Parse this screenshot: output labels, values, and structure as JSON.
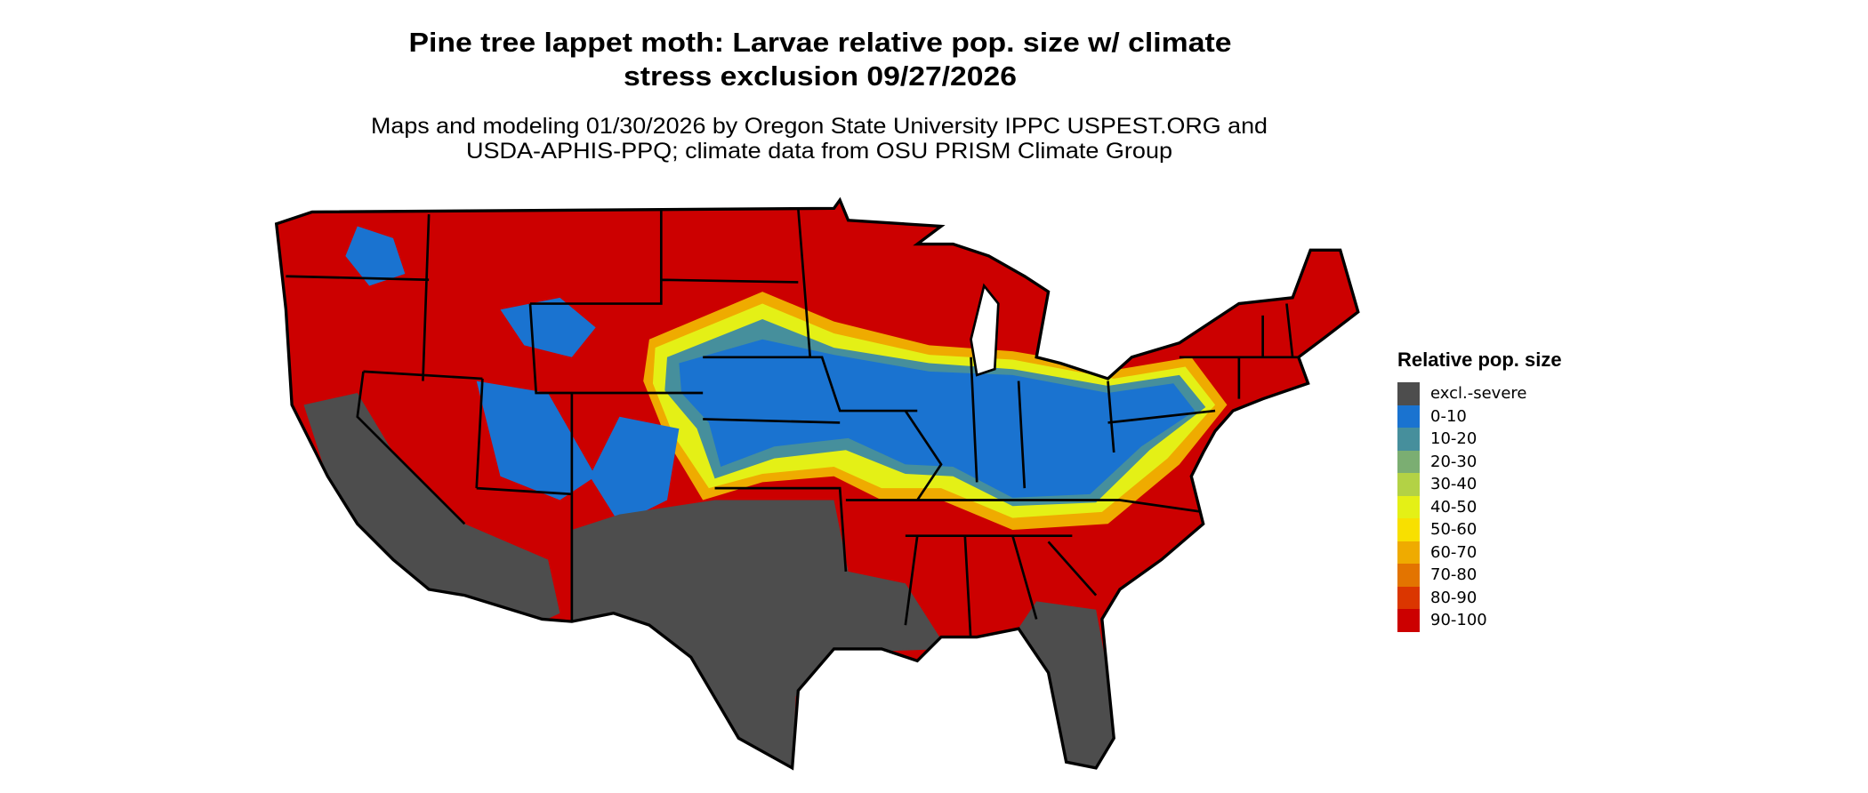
{
  "title": {
    "line1": "Pine tree lappet moth: Larvae relative pop. size w/ climate",
    "line2": "stress exclusion 09/27/2026"
  },
  "subtitle": {
    "line1": "Maps and modeling 01/30/2026 by Oregon State University IPPC USPEST.ORG and",
    "line2": "USDA-APHIS-PPQ; climate data from OSU PRISM Climate Group"
  },
  "legend": {
    "title": "Relative pop. size",
    "items": [
      {
        "label": "excl.-severe",
        "color": "#4d4d4d"
      },
      {
        "label": "0-10",
        "color": "#1a73d0"
      },
      {
        "label": "10-20",
        "color": "#468f9c"
      },
      {
        "label": "20-30",
        "color": "#7bae72"
      },
      {
        "label": "30-40",
        "color": "#b3d245"
      },
      {
        "label": "40-50",
        "color": "#e4f016"
      },
      {
        "label": "50-60",
        "color": "#f8e000"
      },
      {
        "label": "60-70",
        "color": "#efab00"
      },
      {
        "label": "70-80",
        "color": "#e37400"
      },
      {
        "label": "80-90",
        "color": "#db3600"
      },
      {
        "label": "90-100",
        "color": "#cc0000"
      }
    ]
  }
}
